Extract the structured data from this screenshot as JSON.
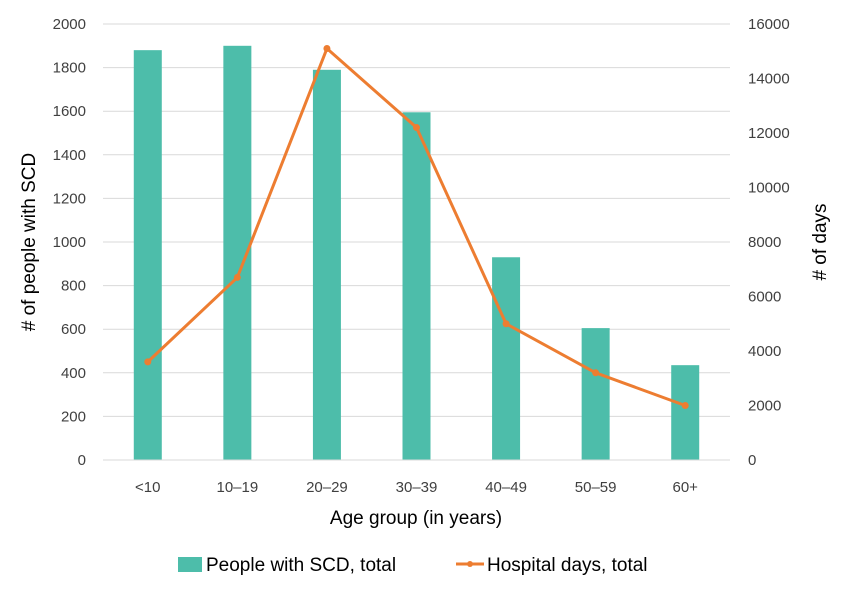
{
  "chart_data": {
    "type": "bar",
    "categories": [
      "<10",
      "10–19",
      "20–29",
      "30–39",
      "40–49",
      "50–59",
      "60+"
    ],
    "series": [
      {
        "name": "People with SCD, total",
        "type": "bar",
        "axis": "left",
        "color": "#4dbdaa",
        "values": [
          1880,
          1900,
          1790,
          1595,
          930,
          605,
          435
        ]
      },
      {
        "name": "Hospital days, total",
        "type": "line",
        "axis": "right",
        "color": "#ed7d31",
        "values": [
          3600,
          6700,
          15100,
          12200,
          5000,
          3200,
          2000
        ]
      }
    ],
    "xlabel": "Age group (in years)",
    "ylabel": "# of people with SCD",
    "ylabel_right": "# of days",
    "ylim": [
      0,
      2000
    ],
    "ylim_right": [
      0,
      16000
    ],
    "yticks": [
      "0",
      "200",
      "400",
      "600",
      "800",
      "1000",
      "1200",
      "1400",
      "1600",
      "1800",
      "2000"
    ],
    "yticks_right": [
      "0",
      "2000",
      "4000",
      "6000",
      "8000",
      "10000",
      "12000",
      "14000",
      "16000"
    ],
    "grid": true,
    "legend_position": "bottom"
  }
}
